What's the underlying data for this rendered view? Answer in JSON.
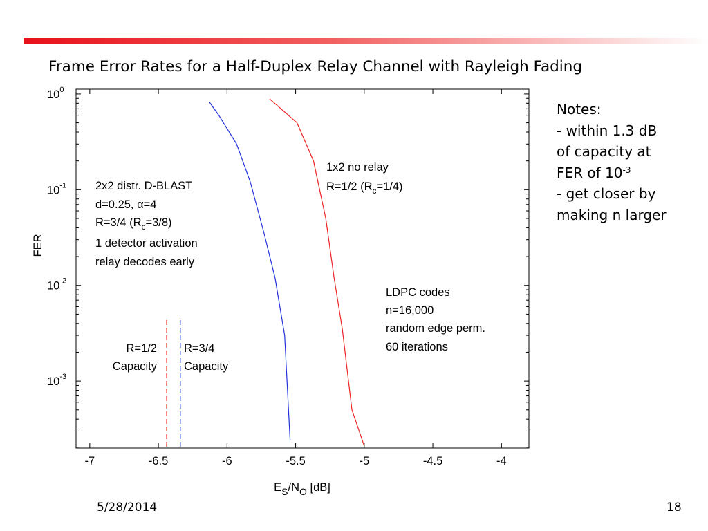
{
  "slide": {
    "title": "Frame Error Rates for a Half-Duplex Relay Channel with Rayleigh Fading",
    "date": "5/28/2014",
    "page_number": "18",
    "accent_color": "#e8101a",
    "notes": {
      "heading": "Notes:",
      "line1": "- within 1.3 dB",
      "line2": "of capacity at",
      "line3_prefix": "FER of 10",
      "line3_sup": "-3",
      "line4": "- get closer by",
      "line5": "making n larger"
    }
  },
  "chart_data": {
    "type": "line",
    "title": "",
    "xlabel": {
      "main": "E",
      "sub1": "S",
      "mid": "/N",
      "sub2": "O",
      "end": " [dB]"
    },
    "ylabel": "FER",
    "xlim": [
      -7.1,
      -3.8
    ],
    "ylim_exp": [
      -3.7,
      0.05
    ],
    "y_scale": "log",
    "x_ticks": [
      -7,
      -6.5,
      -6,
      -5.5,
      -5,
      -4.5,
      -4
    ],
    "x_tick_labels": [
      "-7",
      "-6.5",
      "-6",
      "-5.5",
      "-5",
      "-4.5",
      "-4"
    ],
    "y_ticks": [
      {
        "exp": 0,
        "base": "10",
        "sup": "0"
      },
      {
        "exp": -1,
        "base": "10",
        "sup": "-1"
      },
      {
        "exp": -2,
        "base": "10",
        "sup": "-2"
      },
      {
        "exp": -3,
        "base": "10",
        "sup": "-3"
      }
    ],
    "grid": false,
    "series": [
      {
        "color": "#2233dd",
        "x": [
          -6.13,
          -6.06,
          -5.93,
          -5.83,
          -5.73,
          -5.65,
          -5.58,
          -5.54
        ],
        "y": [
          0.83,
          0.6,
          0.3,
          0.12,
          0.035,
          0.012,
          0.003,
          0.00024
        ]
      },
      {
        "color": "#ee2222",
        "x": [
          -5.69,
          -5.49,
          -5.37,
          -5.28,
          -5.22,
          -5.16,
          -5.09,
          -5.0
        ],
        "y": [
          0.89,
          0.5,
          0.2,
          0.05,
          0.012,
          0.0035,
          0.0005,
          0.00021
        ]
      }
    ],
    "capacity_lines": [
      {
        "x": -6.44,
        "color": "#ee2222",
        "label_line1": "R=1/2",
        "label_line2": "Capacity"
      },
      {
        "x": -6.34,
        "color": "#2233dd",
        "label_line1": "R=3/4",
        "label_line2": "Capacity"
      }
    ],
    "annotations": {
      "dblast": {
        "line1": "2x2 distr. D-BLAST",
        "line2_a": "d=0.25, ",
        "line2_alpha": "α",
        "line2_b": "=4",
        "line3_a": "R=3/4 (R",
        "line3_sub": "c",
        "line3_b": "=3/8)",
        "line4": "1 detector activation",
        "line5": "relay decodes early"
      },
      "norelay": {
        "line1": "1x2 no relay",
        "line2_a": "R=1/2 (R",
        "line2_sub": "c",
        "line2_b": "=1/4)"
      },
      "ldpc": {
        "line1": "LDPC codes",
        "line2": "n=16,000",
        "line3": "random edge perm.",
        "line4": "60 iterations"
      }
    }
  }
}
